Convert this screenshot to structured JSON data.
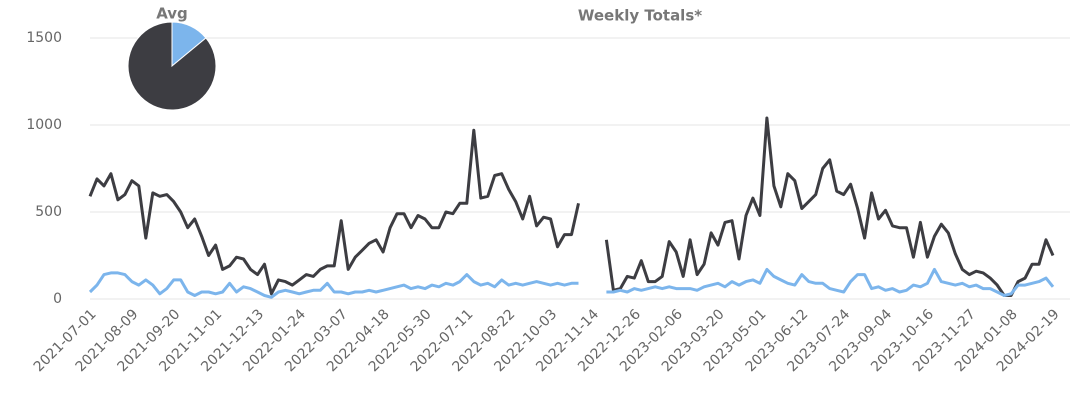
{
  "chart_data": [
    {
      "type": "line",
      "title": "Weekly Totals*",
      "categories": [
        "2021-07-01",
        null,
        null,
        null,
        null,
        null,
        "2021-08-09",
        null,
        null,
        null,
        null,
        null,
        "2021-09-20",
        null,
        null,
        null,
        null,
        null,
        "2021-11-01",
        null,
        null,
        null,
        null,
        null,
        "2021-12-13",
        null,
        null,
        null,
        null,
        null,
        "2022-01-24",
        null,
        null,
        null,
        null,
        null,
        "2022-03-07",
        null,
        null,
        null,
        null,
        null,
        "2022-04-18",
        null,
        null,
        null,
        null,
        null,
        "2022-05-30",
        null,
        null,
        null,
        null,
        null,
        "2022-07-11",
        null,
        null,
        null,
        null,
        null,
        "2022-08-22",
        null,
        null,
        null,
        null,
        null,
        "2022-10-03",
        null,
        null,
        null,
        null,
        null,
        "2022-11-14",
        null,
        null,
        null,
        null,
        null,
        "2022-12-26",
        null,
        null,
        null,
        null,
        null,
        "2023-02-06",
        null,
        null,
        null,
        null,
        null,
        "2023-03-20",
        null,
        null,
        null,
        null,
        null,
        "2023-05-01",
        null,
        null,
        null,
        null,
        null,
        "2023-06-12",
        null,
        null,
        null,
        null,
        null,
        "2023-07-24",
        null,
        null,
        null,
        null,
        null,
        "2023-09-04",
        null,
        null,
        null,
        null,
        null,
        "2023-10-16",
        null,
        null,
        null,
        null,
        null,
        "2023-11-27",
        null,
        null,
        null,
        null,
        null,
        "2024-01-08",
        null,
        null,
        null,
        null,
        null,
        "2024-02-19"
      ],
      "series": [
        {
          "color": "#3d3d42",
          "values": [
            590,
            690,
            650,
            720,
            570,
            600,
            680,
            650,
            350,
            610,
            590,
            600,
            560,
            500,
            410,
            460,
            360,
            250,
            310,
            170,
            190,
            240,
            230,
            170,
            140,
            200,
            30,
            110,
            100,
            80,
            110,
            140,
            130,
            170,
            190,
            190,
            450,
            170,
            240,
            280,
            320,
            340,
            270,
            410,
            490,
            490,
            410,
            480,
            460,
            410,
            410,
            500,
            490,
            550,
            550,
            970,
            580,
            590,
            710,
            720,
            630,
            560,
            460,
            590,
            420,
            470,
            460,
            300,
            370,
            370,
            550,
            null,
            null,
            null,
            340,
            50,
            60,
            130,
            120,
            220,
            100,
            100,
            130,
            330,
            270,
            130,
            340,
            140,
            200,
            380,
            310,
            440,
            450,
            230,
            480,
            580,
            480,
            1040,
            650,
            530,
            720,
            680,
            520,
            560,
            600,
            750,
            800,
            620,
            600,
            660,
            520,
            350,
            610,
            460,
            510,
            420,
            410,
            410,
            240,
            440,
            240,
            360,
            430,
            380,
            260,
            170,
            140,
            160,
            150,
            120,
            80,
            20,
            20,
            100,
            120,
            200,
            200,
            340,
            250
          ]
        },
        {
          "color": "#7cb5ec",
          "values": [
            40,
            80,
            140,
            150,
            150,
            140,
            100,
            80,
            110,
            80,
            30,
            60,
            110,
            110,
            40,
            20,
            40,
            40,
            30,
            40,
            90,
            40,
            70,
            60,
            40,
            20,
            10,
            40,
            50,
            40,
            30,
            40,
            50,
            50,
            90,
            40,
            40,
            30,
            40,
            40,
            50,
            40,
            50,
            60,
            70,
            80,
            60,
            70,
            60,
            80,
            70,
            90,
            80,
            100,
            140,
            100,
            80,
            90,
            70,
            110,
            80,
            90,
            80,
            90,
            100,
            90,
            80,
            90,
            80,
            90,
            90,
            null,
            null,
            null,
            40,
            40,
            50,
            40,
            60,
            50,
            60,
            70,
            60,
            70,
            60,
            60,
            60,
            50,
            70,
            80,
            90,
            70,
            100,
            80,
            100,
            110,
            90,
            170,
            130,
            110,
            90,
            80,
            140,
            100,
            90,
            90,
            60,
            50,
            40,
            100,
            140,
            140,
            60,
            70,
            50,
            60,
            40,
            50,
            80,
            70,
            90,
            170,
            100,
            90,
            80,
            90,
            70,
            80,
            60,
            60,
            40,
            20,
            30,
            80,
            80,
            90,
            100,
            120,
            70
          ]
        }
      ],
      "ylim": [
        0,
        1500
      ],
      "yticks": [
        0,
        500,
        1000,
        1500
      ],
      "grid": true
    },
    {
      "type": "pie",
      "title": "Avg",
      "values": [
        14,
        86
      ],
      "colors": [
        "#7cb5ec",
        "#3d3d42"
      ]
    }
  ]
}
